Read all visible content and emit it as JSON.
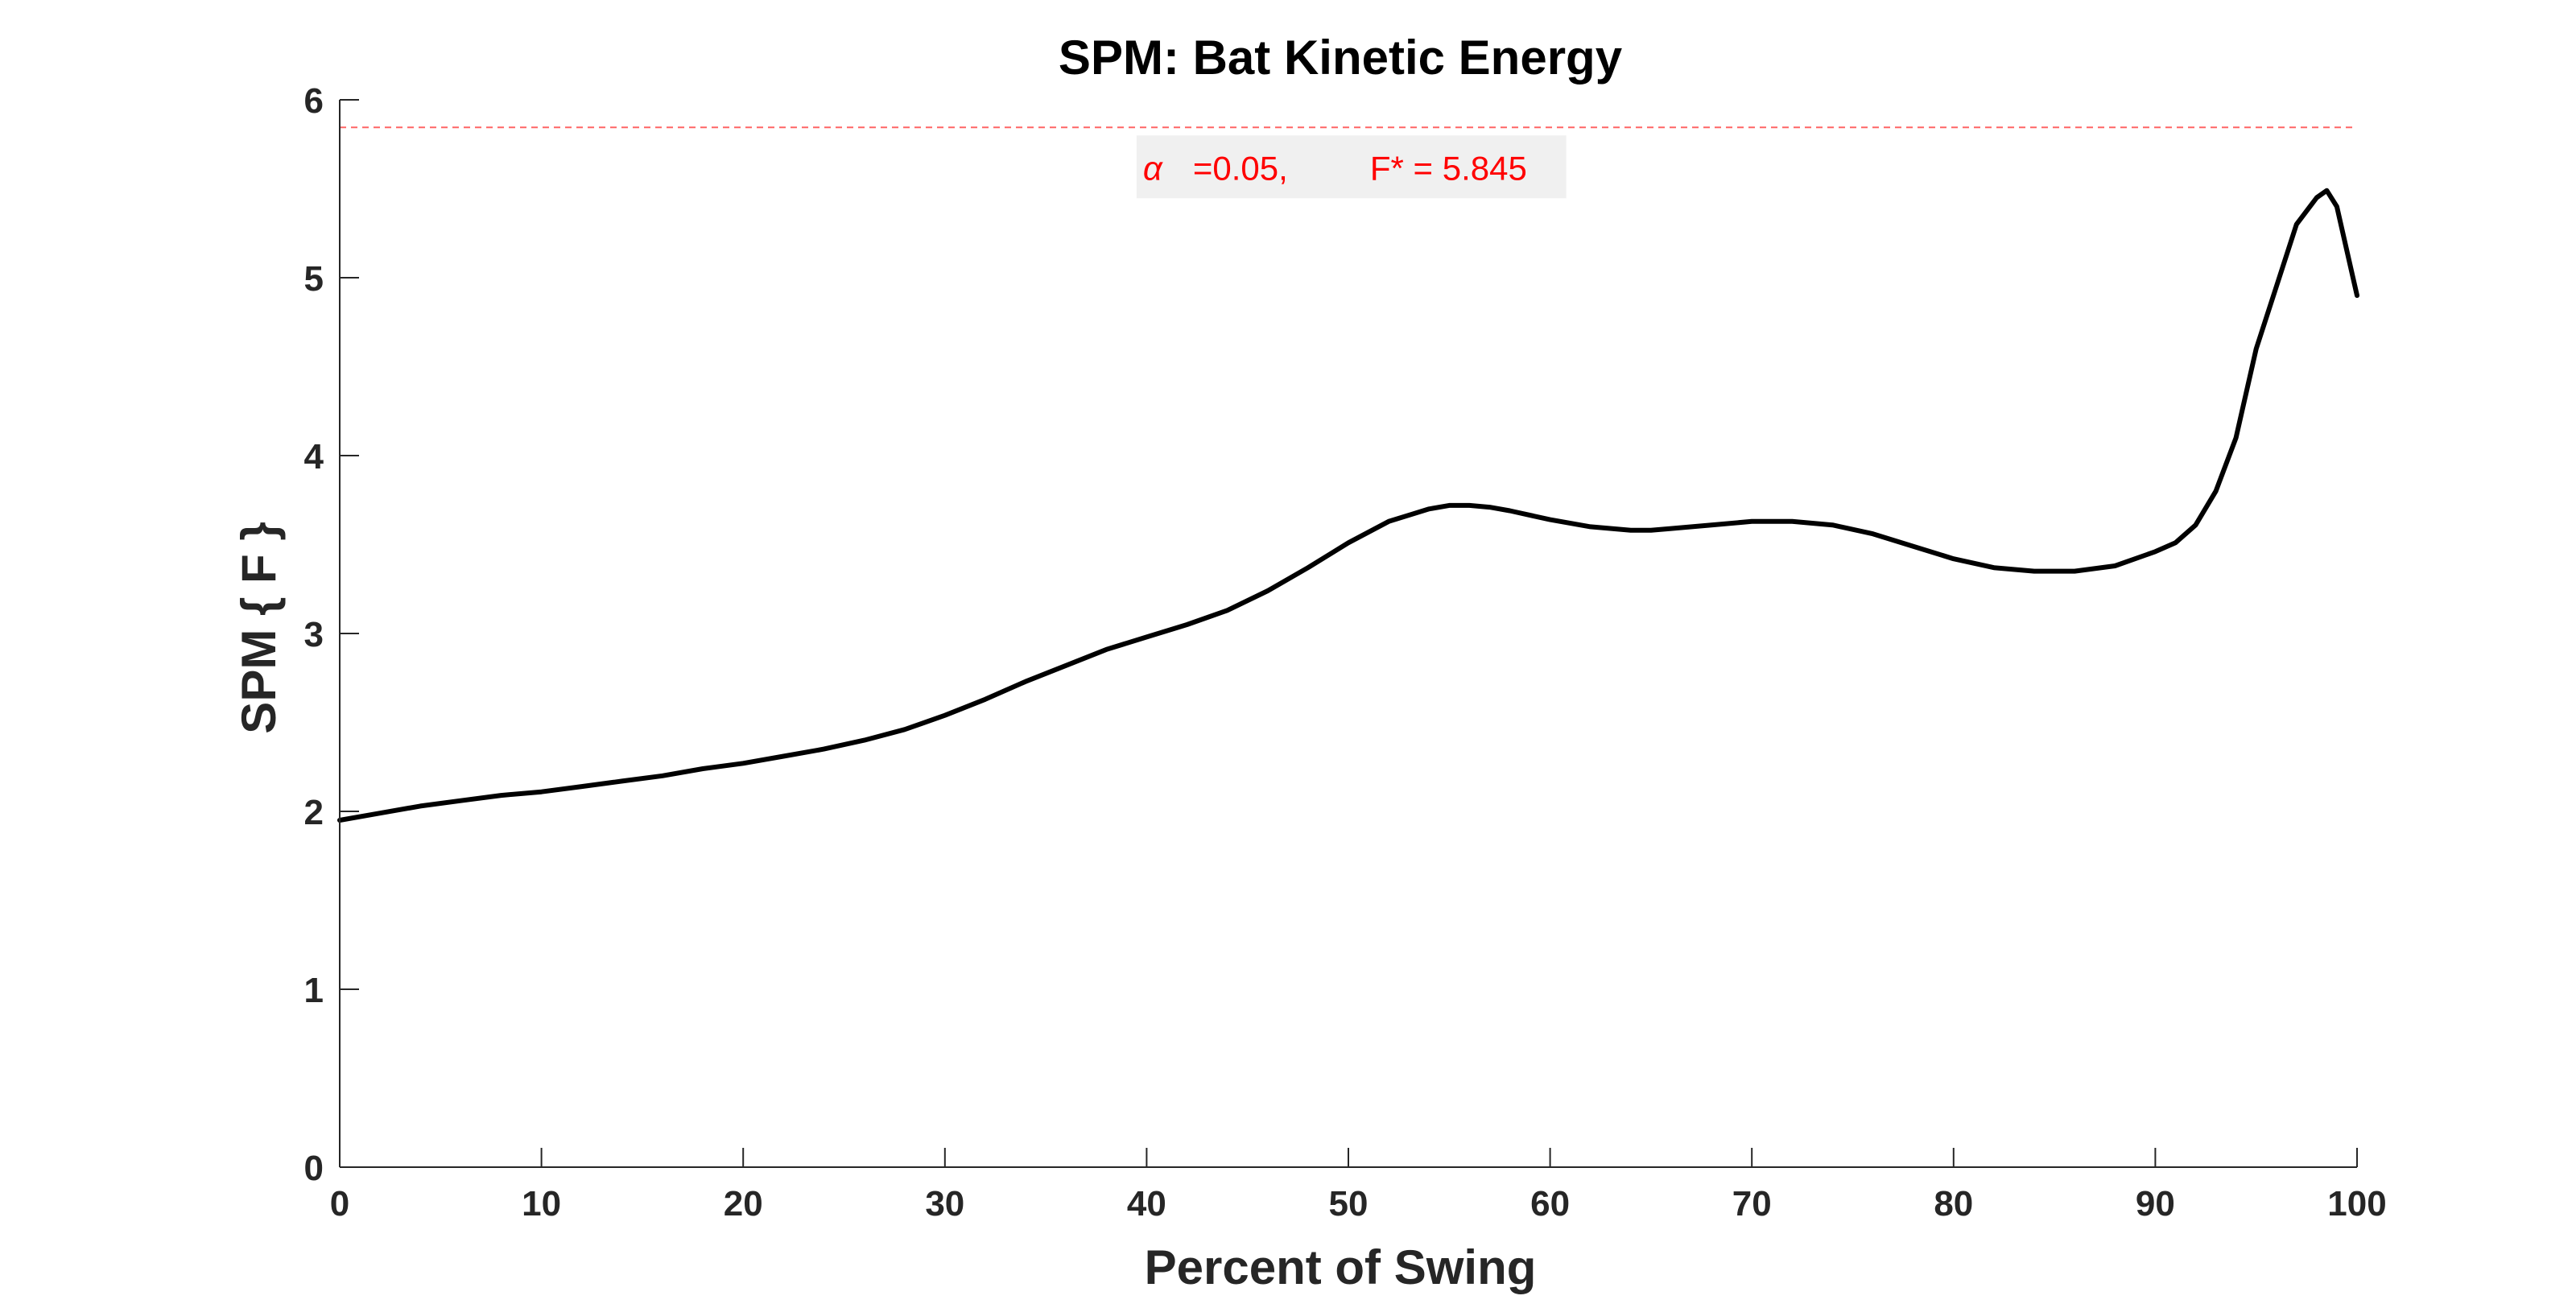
{
  "chart_data": {
    "type": "line",
    "title": "SPM: Bat Kinetic Energy",
    "xlabel": "Percent of Swing",
    "ylabel": "SPM { F }",
    "xlim": [
      0,
      100
    ],
    "ylim": [
      0,
      6
    ],
    "xticks": [
      "0",
      "10",
      "20",
      "30",
      "40",
      "50",
      "60",
      "70",
      "80",
      "90",
      "100"
    ],
    "yticks": [
      "0",
      "1",
      "2",
      "3",
      "4",
      "5",
      "6"
    ],
    "grid": false,
    "series": [
      {
        "color": "#000000",
        "x": [
          0,
          2,
          4,
          6,
          8,
          10,
          12,
          14,
          16,
          18,
          20,
          22,
          24,
          26,
          28,
          30,
          32,
          34,
          36,
          38,
          40,
          42,
          44,
          46,
          48,
          50,
          52,
          54,
          55,
          56,
          57,
          58,
          60,
          62,
          64,
          65,
          66,
          68,
          70,
          71,
          72,
          74,
          76,
          78,
          80,
          82,
          84,
          86,
          88,
          90,
          91,
          92,
          93,
          94,
          95,
          96,
          97,
          98,
          98.5,
          99,
          100
        ],
        "values": [
          1.95,
          1.99,
          2.03,
          2.06,
          2.09,
          2.11,
          2.14,
          2.17,
          2.2,
          2.24,
          2.27,
          2.31,
          2.35,
          2.4,
          2.46,
          2.54,
          2.63,
          2.73,
          2.82,
          2.91,
          2.98,
          3.05,
          3.13,
          3.24,
          3.37,
          3.51,
          3.63,
          3.7,
          3.72,
          3.72,
          3.71,
          3.69,
          3.64,
          3.6,
          3.58,
          3.58,
          3.59,
          3.61,
          3.63,
          3.63,
          3.63,
          3.61,
          3.56,
          3.49,
          3.42,
          3.37,
          3.35,
          3.35,
          3.38,
          3.46,
          3.51,
          3.61,
          3.8,
          4.1,
          4.6,
          4.95,
          5.3,
          5.45,
          5.49,
          5.4,
          4.9
        ]
      }
    ],
    "threshold": {
      "value": 5.845,
      "color": "#ff0000",
      "label_alpha_symbol": "α",
      "label_alpha_text": "=0.05,",
      "label_f_text": "F* = 5.845"
    }
  }
}
